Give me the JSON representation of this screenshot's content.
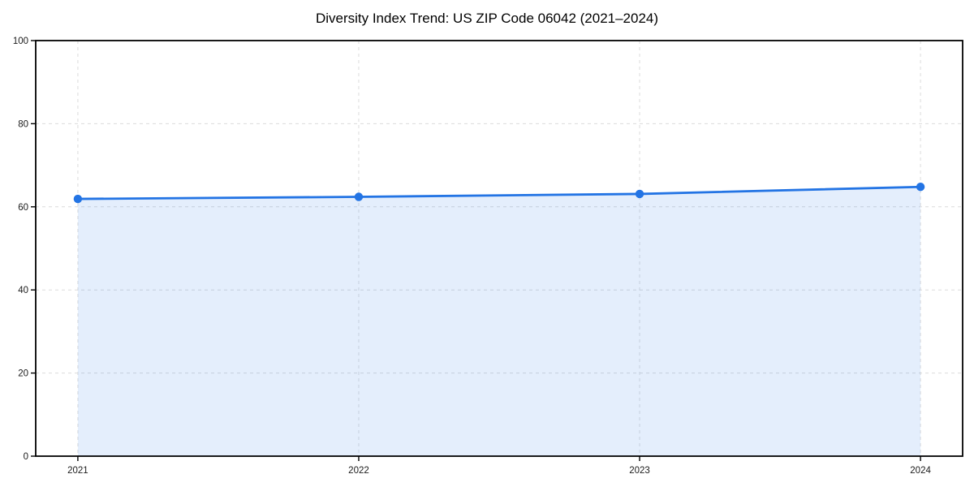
{
  "chart_data": {
    "type": "area",
    "title": "Diversity Index Trend: US ZIP Code 06042 (2021–2024)",
    "categories": [
      "2021",
      "2022",
      "2023",
      "2024"
    ],
    "series": [
      {
        "name": "Diversity Index",
        "values": [
          61.9,
          62.4,
          63.1,
          64.8
        ]
      }
    ],
    "xlabel": "",
    "ylabel": "",
    "ylim": [
      0,
      100
    ],
    "yticks": [
      0,
      20,
      40,
      60,
      80,
      100
    ],
    "grid": "dashed",
    "legend": "none",
    "marker": "circle",
    "colors": {
      "line": "#2374e4",
      "marker": "#2374e4",
      "fill": "rgba(35, 116, 228, 0.12)",
      "grid": "#dcdcdc",
      "spine": "#000000",
      "background": "#ffffff"
    }
  }
}
